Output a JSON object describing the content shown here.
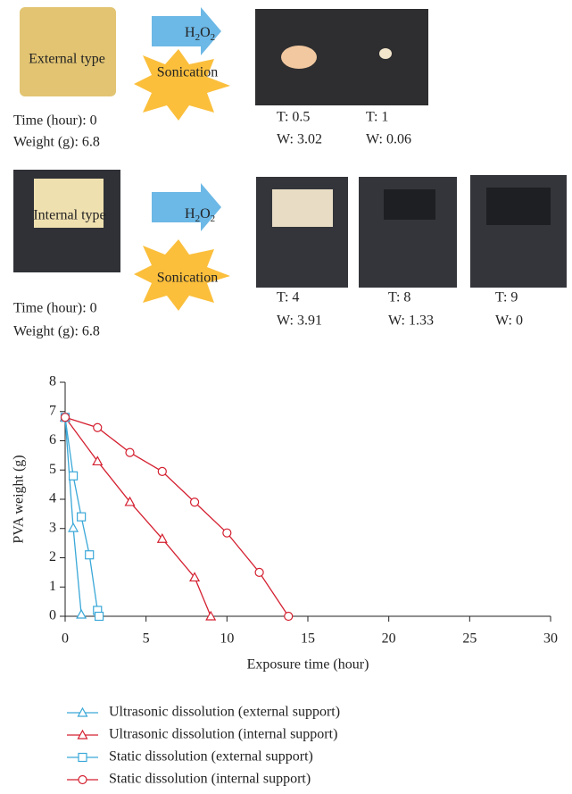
{
  "panel": {
    "external": {
      "label": "External type",
      "time": "Time (hour): 0",
      "weight": "Weight (g): 6.8",
      "samples": [
        {
          "t": "T: 0.5",
          "w": "W: 3.02"
        },
        {
          "t": "T: 1",
          "w": "W: 0.06"
        }
      ]
    },
    "internal": {
      "label": "Internal type",
      "time": "Time (hour): 0",
      "weight": "Weight (g): 6.8",
      "samples": [
        {
          "t": "T: 4",
          "w": "W: 3.91"
        },
        {
          "t": "T: 8",
          "w": "W: 1.33"
        },
        {
          "t": "T: 9",
          "w": "W: 0"
        }
      ]
    },
    "reagent": [
      "H",
      "2",
      "O",
      "2"
    ],
    "treatment": "Sonication"
  },
  "chart_data": {
    "type": "line",
    "x_label": "Exposure time (hour)",
    "y_label": "PVA weight (g)",
    "xlim": [
      0,
      30
    ],
    "xticks": [
      0,
      5,
      10,
      15,
      20,
      25,
      30
    ],
    "ylim": [
      0,
      8
    ],
    "yticks": [
      0,
      1,
      2,
      3,
      4,
      5,
      6,
      7,
      8
    ],
    "grid": false,
    "series": [
      {
        "name": "Ultrasonic dissolution (external support)",
        "color": "#3aa8d8",
        "marker": "triangle",
        "x": [
          0,
          0.5,
          1
        ],
        "values": [
          6.8,
          3.02,
          0.06
        ]
      },
      {
        "name": "Ultrasonic dissolution (internal support)",
        "color": "#d42030",
        "marker": "triangle",
        "x": [
          0,
          2,
          4,
          6,
          8,
          9
        ],
        "values": [
          6.8,
          5.3,
          3.91,
          2.65,
          1.33,
          0
        ]
      },
      {
        "name": "Static dissolution (external support)",
        "color": "#3aa8d8",
        "marker": "square",
        "x": [
          0,
          0.5,
          1,
          1.5,
          2,
          2.1
        ],
        "values": [
          6.8,
          4.8,
          3.4,
          2.1,
          0.2,
          0
        ]
      },
      {
        "name": "Static dissolution (internal support)",
        "color": "#d42030",
        "marker": "circle",
        "x": [
          0,
          2,
          4,
          6,
          8,
          10,
          12,
          13.8
        ],
        "values": [
          6.8,
          6.45,
          5.6,
          4.95,
          3.9,
          2.85,
          1.5,
          0
        ]
      }
    ]
  }
}
